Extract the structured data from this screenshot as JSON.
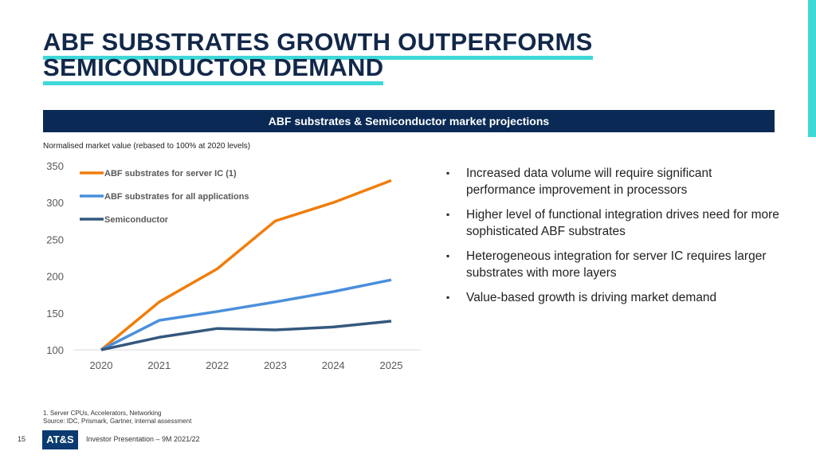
{
  "title_lines": [
    "ABF SUBSTRATES GROWTH OUTPERFORMS",
    "SEMICONDUCTOR DEMAND"
  ],
  "banner": "ABF substrates & Semiconductor market projections",
  "bullets": [
    "Increased data volume will require significant performance improvement in processors",
    "Higher level of functional integration drives need for more sophisticated ABF substrates",
    "Heterogeneous integration for server IC requires larger substrates with more layers",
    "Value-based growth is driving market demand"
  ],
  "footnotes": [
    "1. Server CPUs, Accelerators, Networking",
    "Source: IDC, Prismark, Gartner, internal assessment"
  ],
  "page_number": "15",
  "logo": "AT&S",
  "presentation": "Investor Presentation – 9M 2021/22",
  "chart_data": {
    "type": "line",
    "title": "Normalised market value (rebased to 100% at 2020 levels)",
    "x": [
      "2020",
      "2021",
      "2022",
      "2023",
      "2024",
      "2025"
    ],
    "ylim": [
      100,
      350
    ],
    "yticks": [
      100,
      150,
      200,
      250,
      300,
      350
    ],
    "legend_position": "top-left",
    "grid": false,
    "series": [
      {
        "name": "ABF substrates for server IC (1)",
        "color": "#f07d0c",
        "values": [
          100,
          165,
          210,
          275,
          300,
          330
        ]
      },
      {
        "name": "ABF substrates for all applications",
        "color": "#4a8fdc",
        "values": [
          100,
          140,
          152,
          165,
          179,
          195
        ]
      },
      {
        "name": "Semiconductor",
        "color": "#34587e",
        "values": [
          100,
          117,
          129,
          127,
          131,
          139
        ]
      }
    ]
  }
}
